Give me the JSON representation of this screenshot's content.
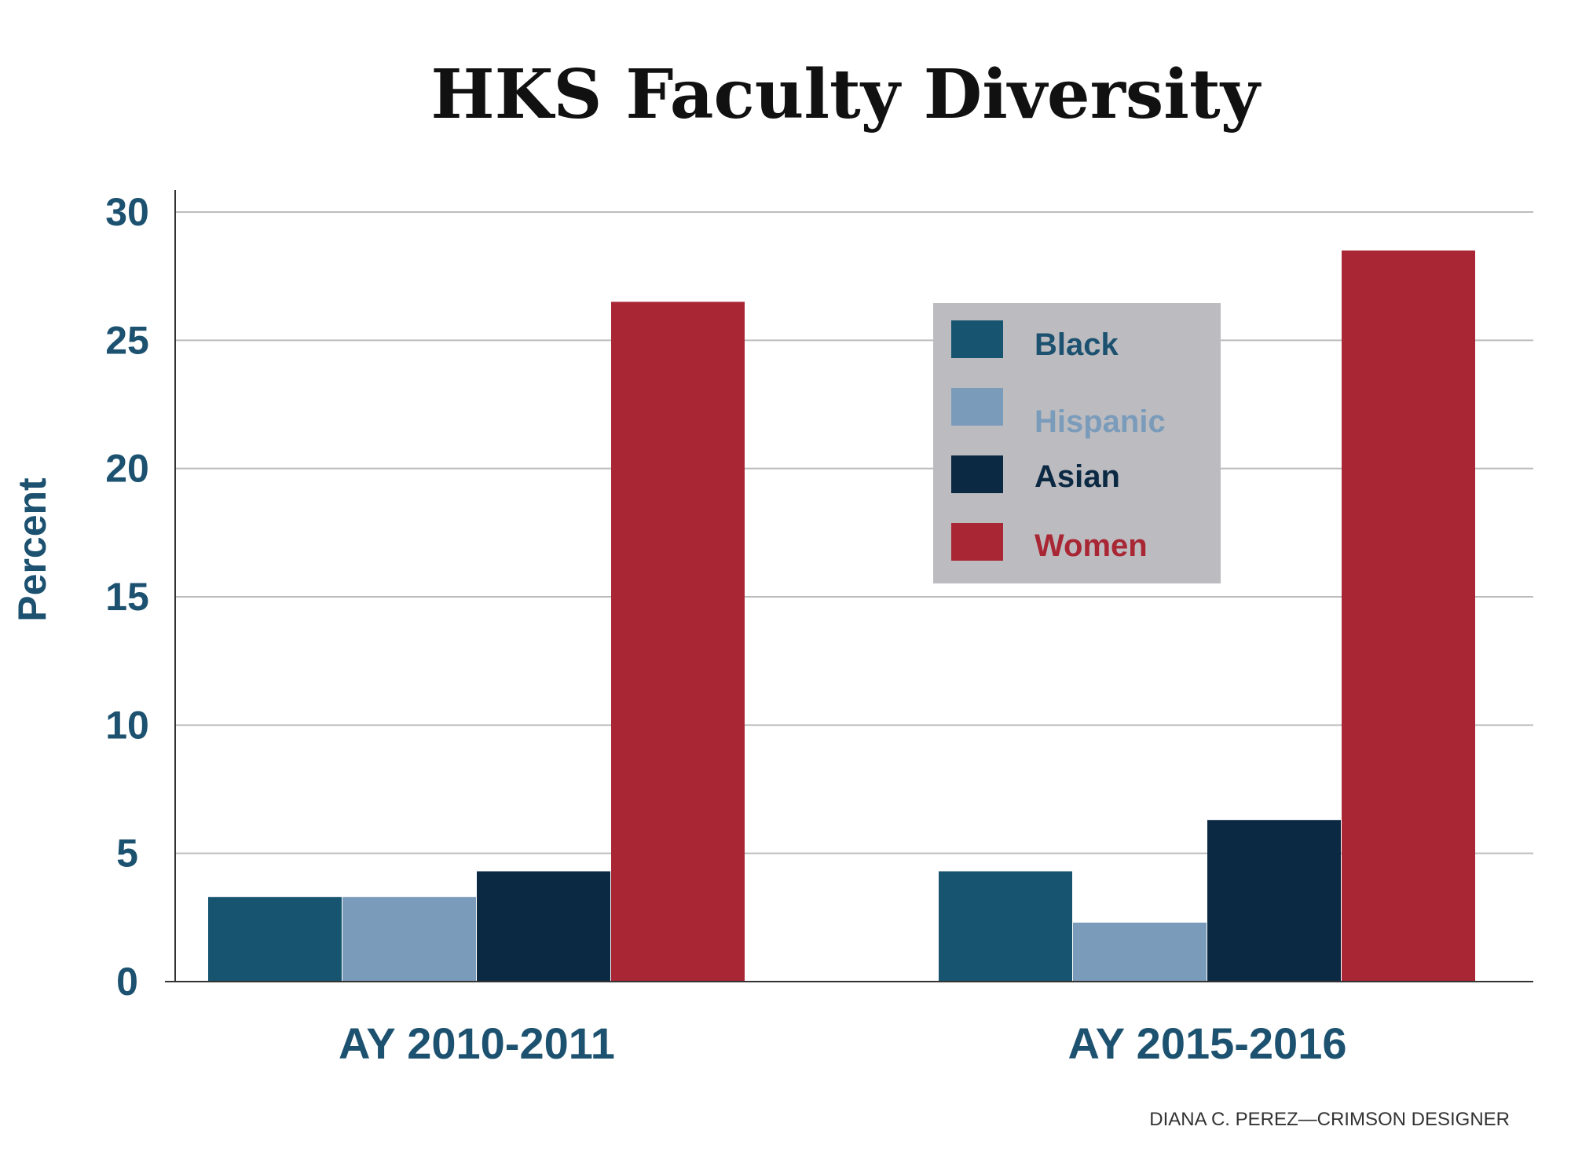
{
  "chart_data": {
    "type": "bar",
    "title": "HKS Faculty Diversity",
    "xlabel": "",
    "ylabel": "Percent",
    "ylim": [
      0,
      30
    ],
    "yticks": [
      0,
      5,
      10,
      15,
      20,
      25,
      30
    ],
    "ytick_labels": [
      "0",
      "5",
      "10",
      "15",
      "20",
      "25",
      "30"
    ],
    "grid": true,
    "legend_position": "upper-right",
    "categories": [
      "AY 2010-2011",
      "AY 2015-2016"
    ],
    "series": [
      {
        "name": "Black",
        "color": "#16546f",
        "values": [
          3.3,
          4.3
        ]
      },
      {
        "name": "Hispanic",
        "color": "#7a9bba",
        "values": [
          3.3,
          2.3
        ]
      },
      {
        "name": "Asian",
        "color": "#0c2943",
        "values": [
          4.3,
          6.3
        ]
      },
      {
        "name": "Women",
        "color": "#a92634",
        "values": [
          26.5,
          28.5
        ]
      }
    ],
    "credit": "DIANA C. PEREZ—CRIMSON DESIGNER",
    "colors": {
      "axis_text": "#1c5170",
      "grid": "#bcbcbc",
      "legend_bg": "#bcbcc0",
      "title": "#111111",
      "credit": "#333333"
    }
  }
}
